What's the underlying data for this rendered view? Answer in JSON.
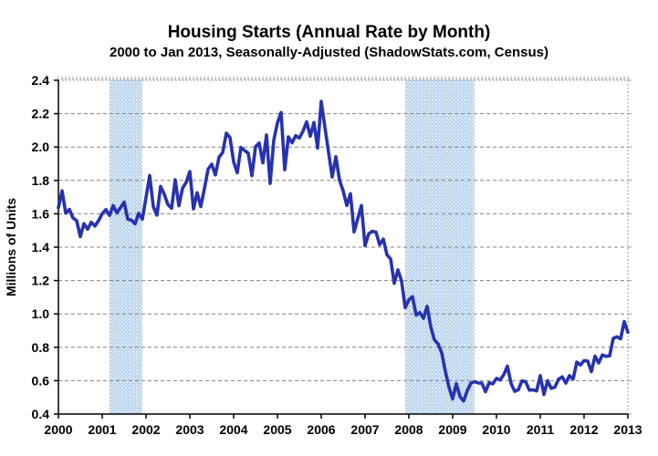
{
  "page": {
    "title": "Housing Starts (Annual Rate by Month)",
    "subtitle": "2000 to Jan 2013, Seasonally-Adjusted (ShadowStats.com, Census)"
  },
  "chart_data": {
    "type": "line",
    "title": "Housing Starts (Annual Rate by Month)",
    "subtitle": "2000 to Jan 2013, Seasonally-Adjusted (ShadowStats.com, Census)",
    "xlabel": "",
    "ylabel": "Millions of Units",
    "ylim": [
      0.4,
      2.4
    ],
    "ytick_step": 0.2,
    "xlim": [
      2000,
      2013
    ],
    "xticks": [
      2000,
      2001,
      2002,
      2003,
      2004,
      2005,
      2006,
      2007,
      2008,
      2009,
      2010,
      2011,
      2012,
      2013
    ],
    "x_frequency": "monthly",
    "x_start": "2000-01",
    "x_end": "2013-01",
    "grid": "horizontal-dashed",
    "legend": "none",
    "recession_bands": [
      {
        "from": 2001.167,
        "to": 2001.917
      },
      {
        "from": 2007.917,
        "to": 2009.5
      }
    ],
    "colors": {
      "line": "#2732ae",
      "band": "#bcd6ef",
      "grid": "#808080",
      "axis": "#000000",
      "frame": "#999999"
    },
    "series": [
      {
        "name": "Housing Starts (seasonally-adjusted annual rate, millions of units)",
        "color": "#2732ae",
        "values": [
          1.636,
          1.737,
          1.604,
          1.626,
          1.575,
          1.559,
          1.463,
          1.541,
          1.507,
          1.549,
          1.526,
          1.559,
          1.6,
          1.625,
          1.59,
          1.649,
          1.605,
          1.636,
          1.67,
          1.567,
          1.562,
          1.54,
          1.602,
          1.568,
          1.698,
          1.829,
          1.642,
          1.592,
          1.764,
          1.717,
          1.655,
          1.633,
          1.804,
          1.648,
          1.753,
          1.788,
          1.853,
          1.629,
          1.726,
          1.643,
          1.751,
          1.867,
          1.897,
          1.833,
          1.939,
          1.967,
          2.083,
          2.057,
          1.911,
          1.846,
          1.998,
          1.979,
          1.963,
          1.828,
          2.002,
          2.024,
          1.905,
          2.072,
          1.782,
          2.042,
          2.144,
          2.207,
          1.864,
          2.061,
          2.025,
          2.068,
          2.054,
          2.095,
          2.151,
          2.065,
          2.147,
          1.994,
          2.273,
          2.119,
          1.969,
          1.821,
          1.942,
          1.802,
          1.737,
          1.65,
          1.72,
          1.491,
          1.57,
          1.649,
          1.409,
          1.48,
          1.495,
          1.49,
          1.415,
          1.448,
          1.354,
          1.33,
          1.183,
          1.264,
          1.197,
          1.037,
          1.084,
          1.103,
          0.993,
          1.008,
          0.973,
          1.046,
          0.923,
          0.844,
          0.82,
          0.767,
          0.655,
          0.56,
          0.49,
          0.582,
          0.505,
          0.478,
          0.54,
          0.585,
          0.594,
          0.586,
          0.585,
          0.534,
          0.588,
          0.581,
          0.614,
          0.604,
          0.636,
          0.687,
          0.583,
          0.536,
          0.546,
          0.599,
          0.594,
          0.543,
          0.545,
          0.539,
          0.63,
          0.517,
          0.6,
          0.554,
          0.561,
          0.608,
          0.623,
          0.585,
          0.63,
          0.61,
          0.711,
          0.694,
          0.72,
          0.718,
          0.654,
          0.747,
          0.706,
          0.754,
          0.746,
          0.749,
          0.854,
          0.863,
          0.851,
          0.954,
          0.89
        ]
      }
    ]
  }
}
